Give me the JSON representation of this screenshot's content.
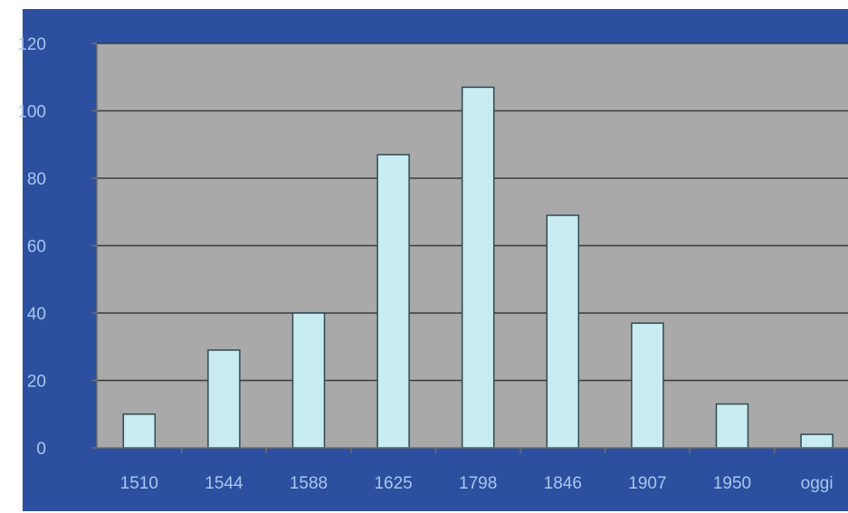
{
  "chart_data": {
    "type": "bar",
    "categories": [
      "1510",
      "1544",
      "1588",
      "1625",
      "1798",
      "1846",
      "1907",
      "1950",
      "oggi"
    ],
    "values": [
      10,
      29,
      40,
      87,
      107,
      69,
      37,
      13,
      4
    ],
    "ylim": [
      0,
      120
    ],
    "yticks": [
      "0",
      "20",
      "40",
      "60",
      "80",
      "100",
      "120"
    ],
    "grid": true,
    "colors": {
      "background": "#2c4f9f",
      "plot_area": "#a9a9a9",
      "bar_fill": "#c9ecf2",
      "bar_stroke": "#2f4a52",
      "gridline": "#3a3a3a",
      "tick_label": "#a9c7ee"
    }
  }
}
